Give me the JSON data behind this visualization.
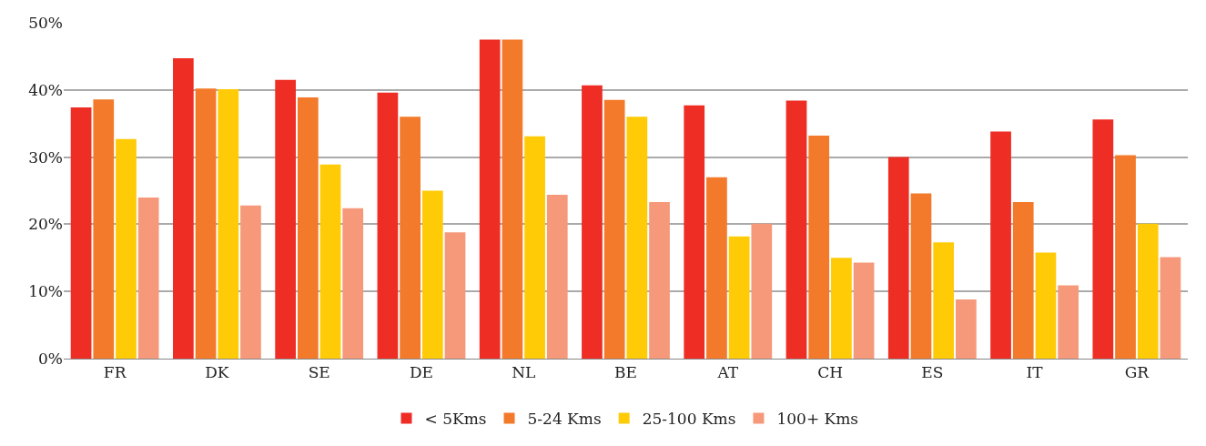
{
  "chart_data": {
    "type": "bar",
    "categories": [
      "FR",
      "DK",
      "SE",
      "DE",
      "NL",
      "BE",
      "AT",
      "CH",
      "ES",
      "IT",
      "GR"
    ],
    "series": [
      {
        "name": "< 5Kms",
        "color": "#ee2e24",
        "values": [
          37.4,
          44.7,
          41.5,
          39.6,
          47.5,
          40.7,
          37.7,
          38.4,
          30.0,
          33.8,
          35.6
        ]
      },
      {
        "name": "5-24 Kms",
        "color": "#f37a2a",
        "values": [
          38.6,
          40.2,
          38.9,
          36.0,
          47.5,
          38.5,
          27.0,
          33.2,
          24.6,
          23.3,
          30.3
        ]
      },
      {
        "name": "25-100 Kms",
        "color": "#fecb06",
        "values": [
          32.7,
          40.1,
          28.9,
          25.0,
          33.1,
          36.0,
          18.2,
          15.0,
          17.3,
          15.8,
          20.1
        ]
      },
      {
        "name": "100+ Kms",
        "color": "#f6997b",
        "values": [
          24.0,
          22.8,
          22.4,
          18.8,
          24.4,
          23.3,
          20.1,
          14.3,
          8.8,
          10.9,
          15.1
        ]
      }
    ],
    "ylim": [
      0,
      50
    ],
    "yticks": [
      {
        "value": 0,
        "label": "0%"
      },
      {
        "value": 10,
        "label": "10%"
      },
      {
        "value": 20,
        "label": "20%"
      },
      {
        "value": 30,
        "label": "30%"
      },
      {
        "value": 40,
        "label": "40%"
      },
      {
        "value": 50,
        "label": "50%"
      }
    ],
    "grid": "y",
    "legend": "bottom"
  }
}
